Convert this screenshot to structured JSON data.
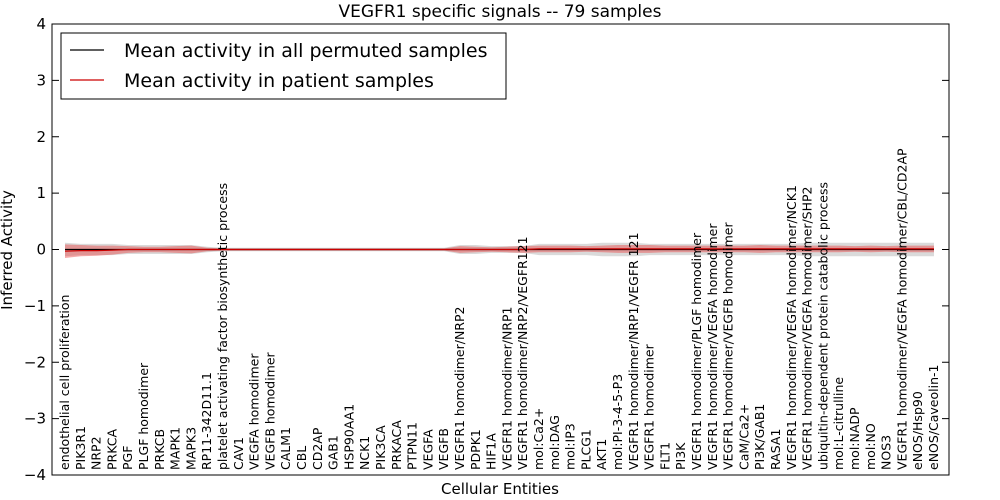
{
  "chart_data": {
    "type": "line",
    "title": "VEGFR1 specific signals -- 79 samples",
    "xlabel": "Cellular Entities",
    "ylabel": "Inferred Activity",
    "ylim": [
      -4,
      4
    ],
    "yticks": [
      -4,
      -3,
      -2,
      -1,
      0,
      1,
      2,
      3,
      4
    ],
    "ytick_labels": [
      "−4",
      "−3",
      "−2",
      "−1",
      "0",
      "1",
      "2",
      "3",
      "4"
    ],
    "legend_position": "top-left",
    "grid": false,
    "categories": [
      "endothelial cell proliferation",
      "PIK3R1",
      "NRP2",
      "PRKCA",
      "PGF",
      "PLGF homodimer",
      "PRKCB",
      "MAPK1",
      "MAPK3",
      "RP11-342D11.1",
      "platelet activating factor biosynthetic process",
      "CAV1",
      "VEGFA homodimer",
      "VEGFB homodimer",
      "CALM1",
      "CBL",
      "CD2AP",
      "GAB1",
      "HSP90AA1",
      "NCK1",
      "PIK3CA",
      "PRKACA",
      "PTPN11",
      "VEGFA",
      "VEGFB",
      "VEGFR1 homodimer/NRP2",
      "PDPK1",
      "HIF1A",
      "VEGFR1 homodimer/NRP1",
      "VEGFR1 homodimer/NRP2/VEGFR121",
      "mol:Ca2+",
      "mol:DAG",
      "mol:IP3",
      "PLCG1",
      "AKT1",
      "mol:PI-3-4-5-P3",
      "VEGFR1 homodimer/NRP1/VEGFR 121",
      "VEGFR1 homodimer",
      "FLT1",
      "PI3K",
      "VEGFR1 homodimer/PLGF homodimer",
      "VEGFR1 homodimer/VEGFA homodimer",
      "VEGFR1 homodimer/VEGFB homodimer",
      "CaM/Ca2+",
      "PI3K/GAB1",
      "RASA1",
      "VEGFR1 homodimer/VEGFA homodimer/NCK1",
      "VEGFR1 homodimer/VEGFA homodimer/SHP2",
      "ubiquitin-dependent protein catabolic process",
      "mol:L-citrulline",
      "mol:NADP",
      "mol:NO",
      "NOS3",
      "VEGFR1 homodimer/VEGFA homodimer/CBL/CD2AP",
      "eNOS/Hsp90",
      "eNOS/Caveolin-1"
    ],
    "series": [
      {
        "name": "Mean activity in all permuted samples",
        "color": "#000000",
        "band_color": "#bbbbbb",
        "values": [
          0.0,
          0.0,
          0.0,
          0.0,
          0.0,
          0.0,
          0.0,
          0.0,
          0.0,
          0.0,
          0.0,
          0.0,
          0.0,
          0.0,
          0.0,
          0.0,
          0.0,
          0.0,
          0.0,
          0.0,
          0.0,
          0.0,
          0.0,
          0.0,
          0.0,
          0.0,
          0.0,
          0.0,
          0.0,
          0.0,
          0.0,
          0.0,
          0.0,
          0.0,
          0.0,
          0.0,
          0.0,
          0.0,
          0.0,
          0.0,
          0.0,
          0.0,
          0.0,
          0.0,
          0.0,
          0.0,
          0.0,
          0.0,
          0.0,
          0.0,
          0.0,
          0.0,
          0.0,
          0.0,
          0.0,
          0.0
        ],
        "band_halfwidth": [
          0.12,
          0.1,
          0.1,
          0.1,
          0.08,
          0.08,
          0.08,
          0.08,
          0.08,
          0.05,
          0.03,
          0.03,
          0.03,
          0.03,
          0.03,
          0.03,
          0.03,
          0.03,
          0.03,
          0.03,
          0.03,
          0.03,
          0.03,
          0.03,
          0.03,
          0.08,
          0.08,
          0.06,
          0.06,
          0.06,
          0.1,
          0.1,
          0.1,
          0.1,
          0.12,
          0.12,
          0.12,
          0.1,
          0.1,
          0.1,
          0.1,
          0.1,
          0.1,
          0.1,
          0.1,
          0.1,
          0.1,
          0.12,
          0.12,
          0.12,
          0.12,
          0.12,
          0.12,
          0.12,
          0.12,
          0.12
        ]
      },
      {
        "name": "Mean activity in patient samples",
        "color": "#cc0000",
        "band_color": "#e84040",
        "values": [
          -0.03,
          -0.02,
          -0.02,
          -0.01,
          0.0,
          0.0,
          0.0,
          0.0,
          0.0,
          0.0,
          0.0,
          0.0,
          0.0,
          0.0,
          0.0,
          0.0,
          0.0,
          0.0,
          0.0,
          0.0,
          0.0,
          0.0,
          0.0,
          0.0,
          0.0,
          0.0,
          0.0,
          0.0,
          0.0,
          0.0,
          0.01,
          0.01,
          0.01,
          0.01,
          0.01,
          0.01,
          0.01,
          0.01,
          0.01,
          0.01,
          0.01,
          0.01,
          0.01,
          0.01,
          0.01,
          0.01,
          0.01,
          0.01,
          0.01,
          0.01,
          0.01,
          0.01,
          0.01,
          0.01,
          0.01,
          0.01
        ],
        "band_halfwidth": [
          0.12,
          0.1,
          0.09,
          0.08,
          0.06,
          0.05,
          0.05,
          0.06,
          0.07,
          0.03,
          0.02,
          0.02,
          0.02,
          0.02,
          0.02,
          0.02,
          0.02,
          0.02,
          0.02,
          0.02,
          0.02,
          0.02,
          0.02,
          0.02,
          0.02,
          0.06,
          0.05,
          0.04,
          0.05,
          0.06,
          0.06,
          0.06,
          0.06,
          0.05,
          0.06,
          0.07,
          0.07,
          0.07,
          0.06,
          0.06,
          0.06,
          0.06,
          0.06,
          0.06,
          0.07,
          0.06,
          0.06,
          0.06,
          0.06,
          0.06,
          0.05,
          0.06,
          0.05,
          0.06,
          0.06,
          0.06
        ]
      }
    ]
  }
}
